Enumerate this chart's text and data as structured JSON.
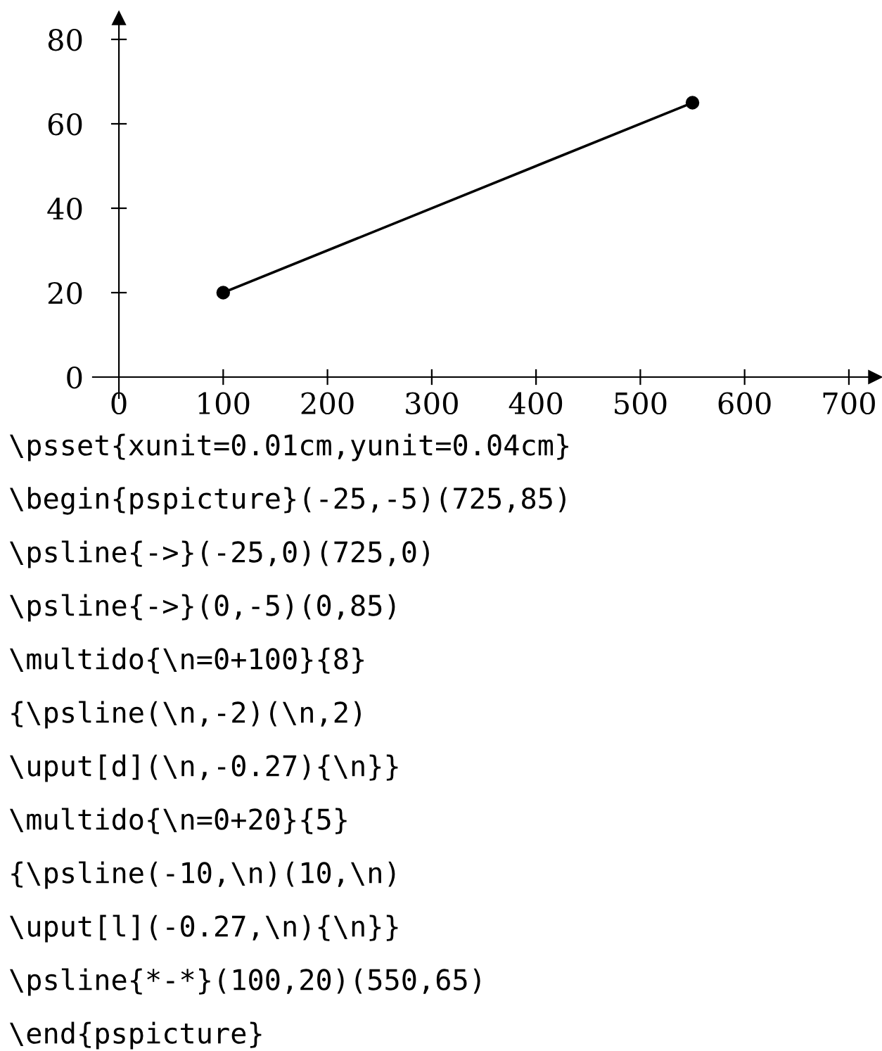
{
  "chart_data": {
    "type": "line",
    "x": [
      100,
      550
    ],
    "series": [
      {
        "color": "#000000",
        "values": [
          20,
          65
        ]
      }
    ],
    "marker": "circle",
    "line_style": "solid",
    "xlim": [
      -25,
      725
    ],
    "ylim": [
      -5,
      85
    ],
    "xticks": [
      0,
      100,
      200,
      300,
      400,
      500,
      600,
      700
    ],
    "yticks": [
      0,
      20,
      40,
      60,
      80
    ],
    "grid": false,
    "annotations": [
      "\\psset{xunit=0.01cm,yunit=0.04cm}",
      "\\begin{pspicture}(-25,-5)(725,85)",
      "\\psline{->}(-25,0)(725,0)",
      "\\psline{->}(0,-5)(0,85)",
      "\\multido{\\n=0+100}{8}",
      "{\\psline(\\n,-2)(\\n,2)",
      "\\uput[d](\\n,-0.27){\\n}}",
      "\\multido{\\n=0+20}{5}",
      "{\\psline(-10,\\n)(10,\\n)",
      "\\uput[l](-0.27,\\n){\\n}}",
      "\\psline{*-*}(100,20)(550,65)",
      "\\end{pspicture}"
    ]
  }
}
